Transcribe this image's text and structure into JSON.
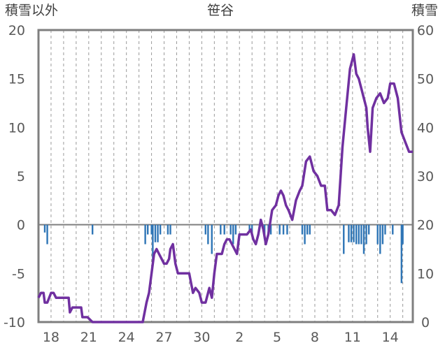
{
  "chart_data": {
    "type": "line+bar",
    "title": "笹谷",
    "left_axis_label": "積雪以外",
    "right_axis_label": "積雪",
    "left_ylim": [
      -10,
      20
    ],
    "left_yticks": [
      -10,
      -5,
      0,
      5,
      10,
      15,
      20
    ],
    "right_ylim": [
      0,
      60
    ],
    "right_yticks": [
      0,
      10,
      20,
      30,
      40,
      50,
      60
    ],
    "x_tick_labels": [
      "18",
      "21",
      "24",
      "27",
      "30",
      "2",
      "5",
      "8",
      "11",
      "14"
    ],
    "x_tick_positions_day_index": [
      1,
      4,
      7,
      10,
      13,
      16,
      19,
      22,
      25,
      28
    ],
    "x_range_day_index": [
      0,
      29.8
    ],
    "grid": "vertical dashed lines each day",
    "series": [
      {
        "kind": "line",
        "color": "#7030A0",
        "x": [
          0.0,
          0.2,
          0.4,
          0.5,
          0.7,
          1.0,
          1.2,
          1.4,
          1.6,
          2.0,
          2.4,
          2.5,
          2.7,
          3.0,
          3.4,
          3.5,
          3.9,
          4.3,
          4.6,
          5.0,
          5.5,
          6.0,
          6.5,
          7.0,
          7.5,
          7.9,
          8.3,
          8.6,
          8.8,
          9.0,
          9.2,
          9.4,
          9.6,
          9.8,
          10.0,
          10.2,
          10.4,
          10.5,
          10.7,
          10.9,
          11.1,
          11.3,
          11.5,
          11.7,
          12.0,
          12.3,
          12.5,
          12.8,
          13.0,
          13.3,
          13.6,
          13.8,
          14.0,
          14.2,
          14.4,
          14.6,
          14.8,
          15.0,
          15.2,
          15.4,
          15.6,
          15.8,
          16.0,
          16.3,
          16.6,
          16.9,
          17.1,
          17.3,
          17.5,
          17.7,
          17.9,
          18.1,
          18.3,
          18.6,
          18.9,
          19.1,
          19.3,
          19.5,
          19.7,
          19.9,
          20.2,
          20.5,
          20.8,
          21.0,
          21.3,
          21.6,
          21.9,
          22.2,
          22.5,
          22.8,
          23.0,
          23.3,
          23.6,
          23.9,
          24.2,
          24.5,
          24.8,
          25.1,
          25.3,
          25.5,
          25.7,
          25.9,
          26.1,
          26.2,
          26.4,
          26.6,
          26.9,
          27.2,
          27.5,
          27.8,
          28.0,
          28.3,
          28.6,
          28.9,
          29.2,
          29.5,
          29.8
        ],
        "y": [
          -7.5,
          -7.0,
          -7.0,
          -8.0,
          -8.0,
          -7.0,
          -7.0,
          -7.5,
          -7.5,
          -7.5,
          -7.5,
          -9.0,
          -8.5,
          -8.5,
          -8.5,
          -9.5,
          -9.5,
          -10.0,
          -10.0,
          -10.0,
          -10.0,
          -10.0,
          -10.0,
          -10.0,
          -10.0,
          -10.0,
          -10.0,
          -8.0,
          -7.0,
          -5.0,
          -3.0,
          -2.5,
          -3.0,
          -3.5,
          -4.0,
          -4.0,
          -3.5,
          -2.5,
          -2.0,
          -4.0,
          -5.0,
          -5.0,
          -5.0,
          -5.0,
          -5.0,
          -7.0,
          -6.5,
          -7.0,
          -8.0,
          -8.0,
          -6.5,
          -7.5,
          -5.0,
          -3.0,
          -3.0,
          -3.0,
          -2.0,
          -1.5,
          -1.5,
          -2.0,
          -2.5,
          -3.0,
          -1.0,
          -1.0,
          -1.0,
          -0.5,
          -1.5,
          -2.0,
          -1.0,
          0.5,
          -0.5,
          -2.0,
          -1.0,
          1.5,
          2.0,
          3.0,
          3.5,
          3.0,
          2.0,
          1.5,
          0.5,
          2.5,
          3.5,
          4.0,
          6.5,
          7.0,
          5.5,
          5.0,
          4.0,
          4.0,
          1.5,
          1.5,
          1.0,
          2.0,
          8.0,
          12.0,
          16.0,
          17.5,
          15.5,
          15.0,
          14.0,
          13.0,
          12.0,
          10.0,
          7.5,
          12.0,
          13.0,
          13.5,
          12.5,
          13.0,
          14.5,
          14.5,
          13.0,
          9.5,
          8.5,
          7.5,
          7.5
        ]
      },
      {
        "kind": "bar",
        "color": "#2E75B6",
        "axis": "left",
        "x": [
          0.5,
          0.7,
          4.3,
          8.5,
          8.7,
          9.0,
          9.1,
          9.3,
          9.5,
          9.7,
          10.3,
          10.5,
          13.3,
          13.5,
          13.8,
          14.5,
          14.8,
          15.3,
          15.5,
          15.7,
          16.8,
          17.0,
          18.0,
          18.3,
          18.5,
          19.2,
          19.5,
          19.8,
          21.0,
          21.2,
          21.4,
          21.6,
          24.3,
          24.7,
          24.9,
          25.1,
          25.3,
          25.5,
          25.7,
          25.9,
          26.1,
          26.3,
          27.0,
          27.2,
          27.4,
          27.6,
          28.2,
          28.9,
          29.0
        ],
        "values": [
          -0.8,
          -2.0,
          -1.0,
          -2.0,
          -1.0,
          -1.0,
          -4.0,
          -1.8,
          -1.8,
          -1.0,
          -1.0,
          -1.0,
          -1.0,
          -2.0,
          -3.0,
          -1.0,
          -1.0,
          -1.0,
          -2.0,
          -1.0,
          -0.8,
          -1.0,
          -1.5,
          -1.0,
          -1.0,
          -1.0,
          -1.0,
          -1.0,
          -1.0,
          -2.0,
          -1.0,
          -1.0,
          -3.0,
          -1.8,
          -1.8,
          -1.8,
          -2.0,
          -2.0,
          -2.0,
          -3.0,
          -2.0,
          -1.0,
          -2.0,
          -3.0,
          -2.0,
          -1.0,
          -1.0,
          -6.0,
          -2.0
        ]
      }
    ]
  }
}
